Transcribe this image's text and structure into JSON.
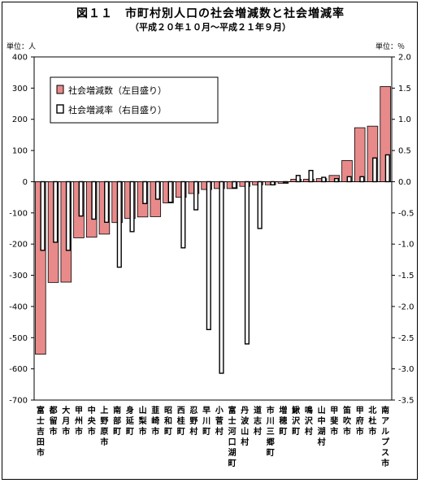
{
  "title": "図１１　市町村別人口の社会増減数と社会増減率",
  "subtitle": "（平成２０年１０月～平成２１年９月）",
  "left_unit": "単位：人",
  "right_unit": "単位：％",
  "colors": {
    "bar_count": "#e98a8a",
    "bar_rate": "#ffffff",
    "stroke": "#000000"
  },
  "chart_data": {
    "type": "bar",
    "categories": [
      "富士吉田市",
      "都留市",
      "大月市",
      "甲州市",
      "中央市",
      "上野原市",
      "南部町",
      "身延町",
      "山梨市",
      "韮崎市",
      "昭和町",
      "西桂町",
      "忍野村",
      "早川町",
      "小菅村",
      "富士河口湖町",
      "丹波山村",
      "道志村",
      "市川三郷町",
      "増穂町",
      "鰍沢町",
      "鳴沢村",
      "山中湖村",
      "甲斐市",
      "笛吹市",
      "甲府市",
      "北杜市",
      "南アルプス市"
    ],
    "series": [
      {
        "name": "社会増減数（左目盛り）",
        "axis": "left",
        "values": [
          -553,
          -323,
          -322,
          -180,
          -178,
          -168,
          -131,
          -118,
          -113,
          -112,
          -68,
          -50,
          -38,
          -25,
          -22,
          -22,
          -15,
          -10,
          -10,
          -5,
          8,
          8,
          10,
          20,
          68,
          173,
          178,
          305
        ]
      },
      {
        "name": "社会増減率（右目盛り）",
        "axis": "right",
        "values": [
          -1.1,
          -0.97,
          -1.1,
          -0.55,
          -0.6,
          -0.65,
          -1.37,
          -0.8,
          -0.35,
          -0.28,
          -0.33,
          -1.06,
          -0.45,
          -2.37,
          -3.07,
          -0.1,
          -2.6,
          -0.75,
          -0.05,
          -0.02,
          0.1,
          0.18,
          0.07,
          0.05,
          0.08,
          0.08,
          0.38,
          0.43
        ]
      }
    ],
    "y_left": {
      "min": -700,
      "max": 400,
      "ticks": [
        400,
        300,
        200,
        100,
        0,
        -100,
        -200,
        -300,
        -400,
        -500,
        -600,
        -700
      ]
    },
    "y_right": {
      "min": -3.5,
      "max": 2.0,
      "ticks": [
        "2.0",
        "1.5",
        "1.0",
        "0.5",
        "0.0",
        "-0.5",
        "-1.0",
        "-1.5",
        "-2.0",
        "-2.5",
        "-3.0",
        "-3.5"
      ]
    },
    "legend_position": "top-left"
  }
}
